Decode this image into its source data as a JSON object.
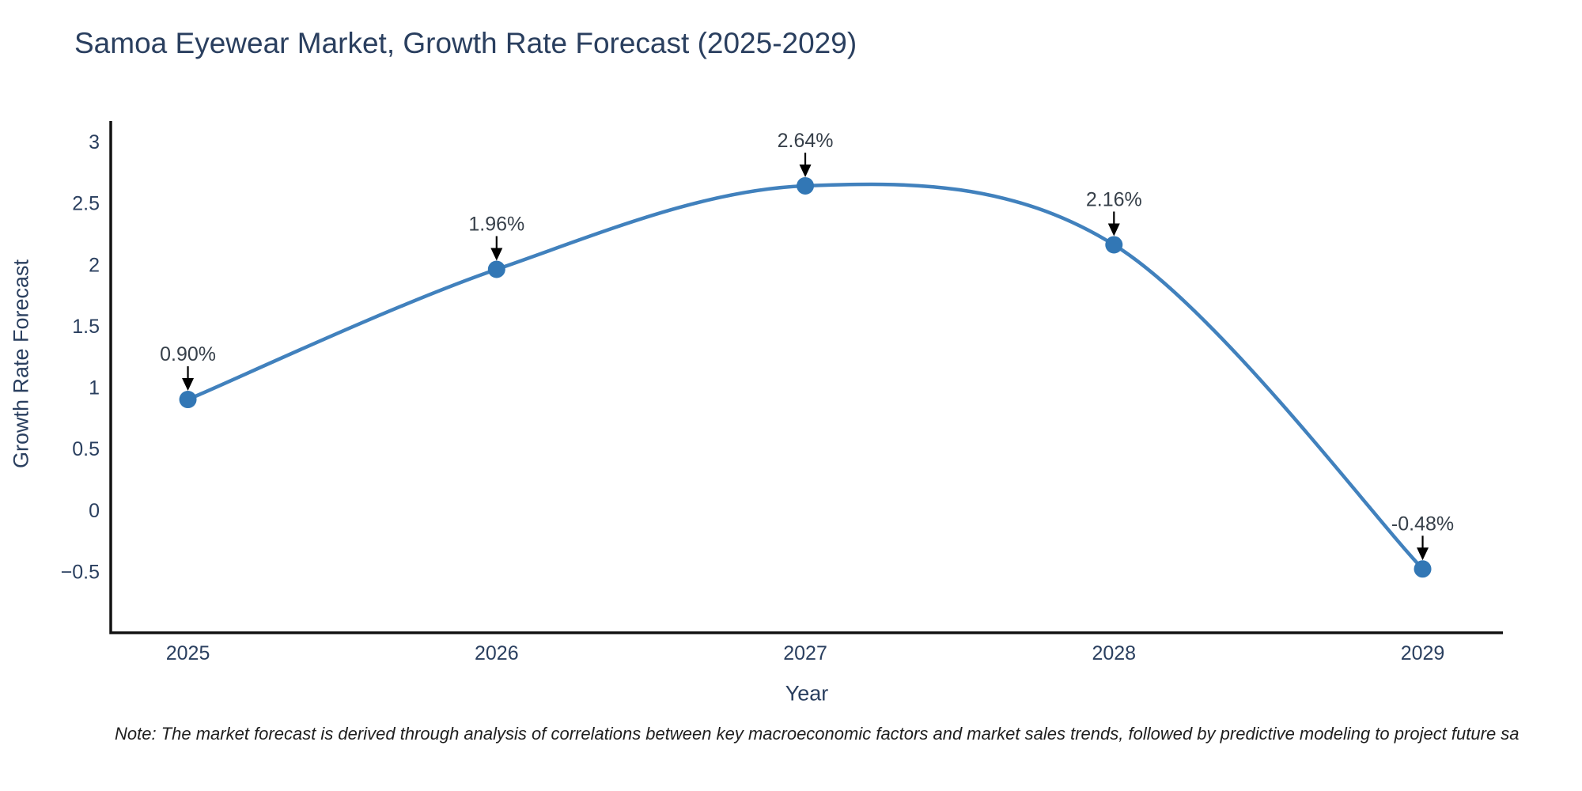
{
  "header": {
    "title": "Samoa Eyewear Market, Growth Rate Forecast (2025-2029)"
  },
  "chart_data": {
    "type": "line",
    "line_shape": "spline",
    "title": "Samoa Eyewear Market, Growth Rate Forecast (2025-2029)",
    "xlabel": "Year",
    "ylabel": "Growth Rate Forecast",
    "x": [
      2025,
      2026,
      2027,
      2028,
      2029
    ],
    "y": [
      0.9,
      1.96,
      2.64,
      2.16,
      -0.48
    ],
    "labels": [
      "0.90%",
      "1.96%",
      "2.64%",
      "2.16%",
      "-0.48%"
    ],
    "x_ticks": [
      {
        "value": 2025,
        "label": "2025"
      },
      {
        "value": 2026,
        "label": "2026"
      },
      {
        "value": 2027,
        "label": "2027"
      },
      {
        "value": 2028,
        "label": "2028"
      },
      {
        "value": 2029,
        "label": "2029"
      }
    ],
    "y_ticks": [
      {
        "value": 3,
        "label": "3"
      },
      {
        "value": 2.5,
        "label": "2.5"
      },
      {
        "value": 2,
        "label": "2"
      },
      {
        "value": 1.5,
        "label": "1.5"
      },
      {
        "value": 1,
        "label": "1"
      },
      {
        "value": 0.5,
        "label": "0.5"
      },
      {
        "value": 0,
        "label": "0"
      },
      {
        "value": -0.5,
        "label": "−0.5"
      }
    ],
    "xlim": [
      2024.75,
      2029.26
    ],
    "ylim": [
      -1.0,
      3.168
    ],
    "grid": false,
    "legend": null,
    "colors": {
      "line": "#4181bd",
      "marker": "#3277b5",
      "axis": "#131313",
      "tick_text": "#2a3f5f",
      "annotation_text": "#37404a",
      "annotation_arrow": "#000000"
    }
  },
  "footer": {
    "note": "Note: The market forecast is derived through analysis of correlations between key macroeconomic factors and market sales trends, followed by predictive modeling to project future sa"
  }
}
